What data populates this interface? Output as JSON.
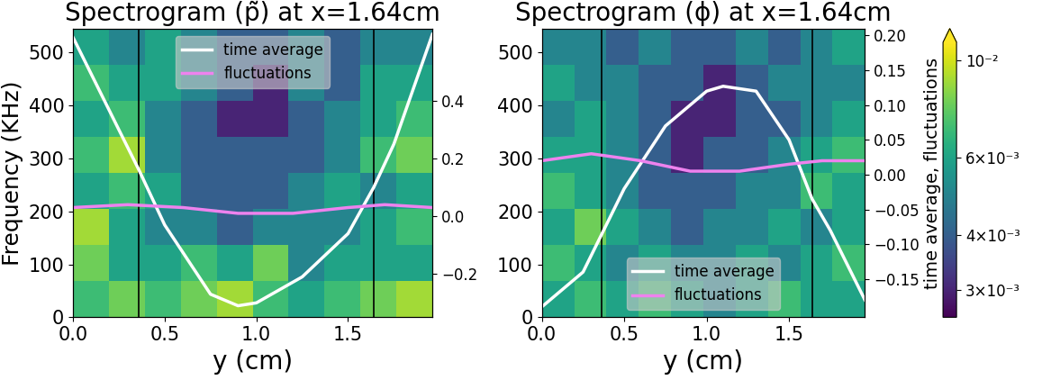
{
  "chart_data": [
    {
      "type": "heatmap",
      "title": "Spectrogram (p̃) at x=1.64cm",
      "x_label": "y (cm)",
      "y_label": "Frequency (KHz)",
      "y2_label": null,
      "x_edges": [
        0,
        0.196,
        0.392,
        0.588,
        0.784,
        0.98,
        1.176,
        1.372,
        1.568,
        1.764,
        1.96
      ],
      "y_edges": [
        0,
        68,
        136,
        204,
        272,
        340,
        408,
        476,
        545
      ],
      "cells": [
        [
          0.007,
          0.008,
          0.007,
          0.008,
          0.009,
          0.007,
          0.006,
          0.007,
          0.008,
          0.009
        ],
        [
          0.008,
          0.006,
          0.006,
          0.007,
          0.006,
          0.008,
          0.005,
          0.006,
          0.006,
          0.006
        ],
        [
          0.009,
          0.006,
          0.005,
          0.005,
          0.004,
          0.005,
          0.005,
          0.005,
          0.006,
          0.007
        ],
        [
          0.006,
          0.007,
          0.006,
          0.004,
          0.004,
          0.004,
          0.005,
          0.006,
          0.005,
          0.006
        ],
        [
          0.007,
          0.009,
          0.005,
          0.004,
          0.004,
          0.004,
          0.004,
          0.005,
          0.007,
          0.008
        ],
        [
          0.006,
          0.007,
          0.005,
          0.004,
          0.003,
          0.003,
          0.004,
          0.005,
          0.006,
          0.007
        ],
        [
          0.007,
          0.006,
          0.006,
          0.005,
          0.004,
          0.003,
          0.005,
          0.004,
          0.006,
          0.006
        ],
        [
          0.006,
          0.005,
          0.006,
          0.005,
          0.004,
          0.004,
          0.005,
          0.004,
          0.005,
          0.005
        ]
      ],
      "xlim": [
        0,
        1.96
      ],
      "xticks": [
        {
          "value": 0,
          "label": "0.0"
        },
        {
          "value": 0.5,
          "label": "0.5"
        },
        {
          "value": 1.0,
          "label": "1.0"
        },
        {
          "value": 1.5,
          "label": "1.5"
        }
      ],
      "ylim": [
        0,
        545
      ],
      "yticks": [
        0,
        100,
        200,
        300,
        400,
        500
      ],
      "y2lim": [
        -0.35,
        0.65
      ],
      "y2ticks": [
        {
          "value": -0.2,
          "label": "−0.2"
        },
        {
          "value": 0.0,
          "label": "0.0"
        },
        {
          "value": 0.2,
          "label": "0.2"
        },
        {
          "value": 0.4,
          "label": "0.4"
        }
      ],
      "vlines": [
        0.36,
        1.64
      ],
      "legend": "upper center",
      "series": [
        {
          "name": "time average",
          "color": "#ffffff",
          "axis": "y2",
          "x": [
            0,
            0.25,
            0.36,
            0.5,
            0.75,
            0.9,
            1.0,
            1.25,
            1.5,
            1.64,
            1.75,
            1.96
          ],
          "values": [
            0.62,
            0.3,
            0.16,
            -0.03,
            -0.27,
            -0.31,
            -0.3,
            -0.21,
            -0.06,
            0.1,
            0.25,
            0.63
          ]
        },
        {
          "name": "fluctuations",
          "color": "#ee82ee",
          "axis": "y2",
          "x": [
            0,
            0.3,
            0.6,
            0.9,
            1.2,
            1.5,
            1.7,
            1.96
          ],
          "values": [
            0.03,
            0.04,
            0.03,
            0.01,
            0.01,
            0.03,
            0.04,
            0.03
          ]
        }
      ]
    },
    {
      "type": "heatmap",
      "title": "Spectrogram (ϕ) at x=1.64cm",
      "x_label": "y (cm)",
      "y_label": null,
      "y2_label": "time average, fluctuations",
      "x_edges": [
        0,
        0.196,
        0.392,
        0.588,
        0.784,
        0.98,
        1.176,
        1.372,
        1.568,
        1.764,
        1.96
      ],
      "y_edges": [
        0,
        68,
        136,
        204,
        272,
        340,
        408,
        476,
        545
      ],
      "cells": [
        [
          0.006,
          0.007,
          0.006,
          0.007,
          0.006,
          0.005,
          0.006,
          0.007,
          0.006,
          0.006
        ],
        [
          0.007,
          0.006,
          0.005,
          0.006,
          0.005,
          0.005,
          0.006,
          0.005,
          0.006,
          0.007
        ],
        [
          0.006,
          0.008,
          0.006,
          0.005,
          0.004,
          0.005,
          0.005,
          0.006,
          0.005,
          0.006
        ],
        [
          0.007,
          0.006,
          0.005,
          0.004,
          0.004,
          0.004,
          0.005,
          0.005,
          0.007,
          0.006
        ],
        [
          0.006,
          0.006,
          0.005,
          0.004,
          0.003,
          0.004,
          0.004,
          0.005,
          0.006,
          0.007
        ],
        [
          0.005,
          0.006,
          0.005,
          0.004,
          0.003,
          0.003,
          0.004,
          0.004,
          0.005,
          0.006
        ],
        [
          0.006,
          0.005,
          0.005,
          0.004,
          0.004,
          0.003,
          0.004,
          0.005,
          0.005,
          0.005
        ],
        [
          0.005,
          0.005,
          0.004,
          0.005,
          0.004,
          0.004,
          0.005,
          0.004,
          0.005,
          0.006
        ]
      ],
      "xlim": [
        0,
        1.96
      ],
      "xticks": [
        {
          "value": 0,
          "label": "0.0"
        },
        {
          "value": 0.5,
          "label": "0.5"
        },
        {
          "value": 1.0,
          "label": "1.0"
        },
        {
          "value": 1.5,
          "label": "1.5"
        }
      ],
      "ylim": [
        0,
        545
      ],
      "yticks": [
        0,
        100,
        200,
        300,
        400,
        500
      ],
      "y2lim": [
        -0.205,
        0.21
      ],
      "y2ticks": [
        {
          "value": -0.15,
          "label": "−0.15"
        },
        {
          "value": -0.1,
          "label": "−0.10"
        },
        {
          "value": -0.05,
          "label": "−0.05"
        },
        {
          "value": 0.0,
          "label": "0.00"
        },
        {
          "value": 0.05,
          "label": "0.05"
        },
        {
          "value": 0.1,
          "label": "0.10"
        },
        {
          "value": 0.15,
          "label": "0.15"
        },
        {
          "value": 0.2,
          "label": "0.20"
        }
      ],
      "vlines": [
        0.36,
        1.64
      ],
      "legend": "lower center",
      "series": [
        {
          "name": "time average",
          "color": "#ffffff",
          "axis": "y2",
          "x": [
            0,
            0.25,
            0.5,
            0.75,
            1.0,
            1.1,
            1.3,
            1.5,
            1.64,
            1.75,
            1.96
          ],
          "values": [
            -0.19,
            -0.14,
            -0.02,
            0.07,
            0.12,
            0.127,
            0.12,
            0.05,
            -0.035,
            -0.08,
            -0.18
          ]
        },
        {
          "name": "fluctuations",
          "color": "#ee82ee",
          "axis": "y2",
          "x": [
            0,
            0.3,
            0.6,
            0.9,
            1.2,
            1.5,
            1.7,
            1.96
          ],
          "values": [
            0.02,
            0.03,
            0.02,
            0.005,
            0.005,
            0.015,
            0.02,
            0.02
          ]
        }
      ],
      "colorbar": {
        "lim": [
          0.0026,
          0.011
        ],
        "ticks": [
          {
            "value": 0.003,
            "label": "3×10⁻³"
          },
          {
            "value": 0.004,
            "label": "4×10⁻³"
          },
          {
            "value": 0.006,
            "label": "6×10⁻³"
          },
          {
            "value": 0.01,
            "label": "10⁻²"
          }
        ]
      }
    }
  ]
}
